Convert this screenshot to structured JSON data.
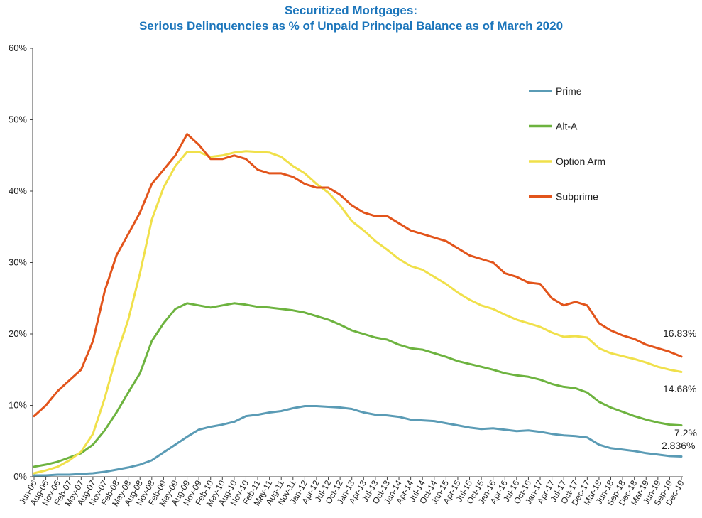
{
  "chart_data": {
    "type": "line",
    "title": "Securitized Mortgages:",
    "subtitle": "Serious Delinquencies as % of Unpaid Principal Balance as of March 2020",
    "xlabel": "",
    "ylabel": "",
    "ylim": [
      0,
      60
    ],
    "yticks": [
      "0%",
      "10%",
      "20%",
      "30%",
      "40%",
      "50%",
      "60%"
    ],
    "grid": false,
    "legend": "top-right",
    "categories": [
      "Jun-06",
      "Aug-06",
      "Nov-06",
      "Feb-07",
      "May-07",
      "Aug-07",
      "Nov-07",
      "Feb-08",
      "May-08",
      "Aug-08",
      "Nov-08",
      "Feb-09",
      "May-09",
      "Aug-09",
      "Nov-09",
      "Feb-10",
      "May-10",
      "Aug-10",
      "Nov-10",
      "Feb-11",
      "May-11",
      "Aug-11",
      "Nov-11",
      "Jan-12",
      "Apr-12",
      "Jul-12",
      "Oct-12",
      "Jan-13",
      "Apr-13",
      "Jul-13",
      "Oct-13",
      "Jan-14",
      "Apr-14",
      "Jul-14",
      "Oct-14",
      "Jan-15",
      "Apr-15",
      "Jul-15",
      "Oct-15",
      "Jan-16",
      "Apr-16",
      "Jul-16",
      "Oct-16",
      "Jan-17",
      "Apr-17",
      "Jul-17",
      "Oct-17",
      "Dec-17",
      "Mar-18",
      "Jun-18",
      "Sep-18",
      "Dec-18",
      "Mar-19",
      "Jun-19",
      "Sep-19",
      "Dec-19"
    ],
    "series": [
      {
        "name": "Prime",
        "color": "#5a9bb5",
        "values": [
          0.2,
          0.2,
          0.3,
          0.3,
          0.4,
          0.5,
          0.7,
          1.0,
          1.3,
          1.7,
          2.3,
          3.4,
          4.5,
          5.6,
          6.6,
          7.0,
          7.3,
          7.7,
          8.5,
          8.7,
          9.0,
          9.2,
          9.6,
          9.9,
          9.9,
          9.8,
          9.7,
          9.5,
          9.0,
          8.7,
          8.6,
          8.4,
          8.0,
          7.9,
          7.8,
          7.5,
          7.2,
          6.9,
          6.7,
          6.8,
          6.6,
          6.4,
          6.5,
          6.3,
          6.0,
          5.8,
          5.7,
          5.5,
          4.5,
          4.0,
          3.8,
          3.6,
          3.3,
          3.1,
          2.9,
          2.836
        ]
      },
      {
        "name": "Alt-A",
        "color": "#6db33f",
        "values": [
          1.4,
          1.7,
          2.1,
          2.7,
          3.3,
          4.5,
          6.5,
          9.0,
          11.8,
          14.5,
          19.0,
          21.5,
          23.5,
          24.3,
          24.0,
          23.7,
          24.0,
          24.3,
          24.1,
          23.8,
          23.7,
          23.5,
          23.3,
          23.0,
          22.5,
          22.0,
          21.3,
          20.5,
          20.0,
          19.5,
          19.2,
          18.5,
          18.0,
          17.8,
          17.3,
          16.8,
          16.2,
          15.8,
          15.4,
          15.0,
          14.5,
          14.2,
          14.0,
          13.6,
          13.0,
          12.6,
          12.4,
          11.8,
          10.5,
          9.7,
          9.1,
          8.5,
          8.0,
          7.6,
          7.3,
          7.2
        ]
      },
      {
        "name": "Option Arm",
        "color": "#f0e04a",
        "values": [
          0.5,
          0.9,
          1.4,
          2.3,
          3.5,
          6.0,
          11.0,
          17.0,
          22.0,
          28.5,
          36.0,
          40.5,
          43.5,
          45.5,
          45.5,
          44.8,
          45.0,
          45.4,
          45.6,
          45.5,
          45.4,
          44.8,
          43.5,
          42.5,
          41.0,
          39.8,
          38.0,
          35.8,
          34.5,
          33.0,
          31.8,
          30.5,
          29.5,
          29.0,
          28.0,
          27.0,
          25.8,
          24.8,
          24.0,
          23.5,
          22.7,
          22.0,
          21.5,
          21.0,
          20.2,
          19.6,
          19.7,
          19.5,
          18.0,
          17.3,
          16.9,
          16.5,
          16.0,
          15.4,
          15.0,
          14.68
        ]
      },
      {
        "name": "Subprime",
        "color": "#e2541b",
        "values": [
          8.5,
          10.0,
          12.0,
          13.5,
          15.0,
          19.0,
          26.0,
          31.0,
          34.0,
          37.0,
          41.0,
          43.0,
          45.0,
          48.0,
          46.5,
          44.5,
          44.5,
          45.0,
          44.5,
          43.0,
          42.5,
          42.5,
          42.0,
          41.0,
          40.5,
          40.5,
          39.5,
          38.0,
          37.0,
          36.5,
          36.5,
          35.5,
          34.5,
          34.0,
          33.5,
          33.0,
          32.0,
          31.0,
          30.5,
          30.0,
          28.5,
          28.0,
          27.2,
          27.0,
          25.0,
          24.0,
          24.5,
          24.0,
          21.5,
          20.5,
          19.8,
          19.3,
          18.5,
          18.0,
          17.5,
          16.83
        ]
      }
    ],
    "end_labels": [
      "16.83%",
      "14.68%",
      "7.2%",
      "2.836%"
    ]
  }
}
